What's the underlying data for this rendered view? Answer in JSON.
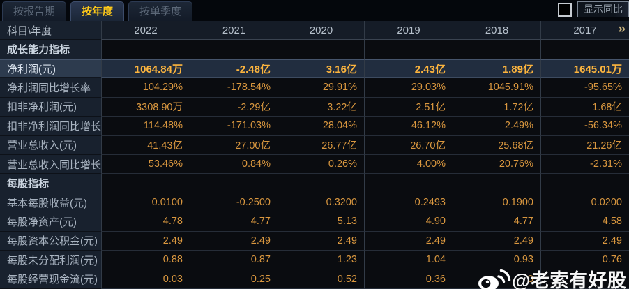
{
  "tabs": [
    {
      "label": "按报告期",
      "active": false
    },
    {
      "label": "按年度",
      "active": true
    },
    {
      "label": "按单季度",
      "active": false
    }
  ],
  "controls": {
    "show_yoy_label": "显示同比",
    "checkbox_checked": false
  },
  "table": {
    "corner_label": "科目\\年度",
    "years": [
      "2022",
      "2021",
      "2020",
      "2019",
      "2018",
      "2017"
    ],
    "more_icon": "»",
    "rows": [
      {
        "type": "section",
        "highlight": false,
        "label": "成长能力指标",
        "values": [
          "",
          "",
          "",
          "",
          "",
          ""
        ]
      },
      {
        "type": "data",
        "highlight": true,
        "label": "净利润(元)",
        "values": [
          "1064.84万",
          "-2.48亿",
          "3.16亿",
          "2.43亿",
          "1.89亿",
          "1645.01万"
        ]
      },
      {
        "type": "data",
        "highlight": false,
        "label": "净利润同比增长率",
        "values": [
          "104.29%",
          "-178.54%",
          "29.91%",
          "29.03%",
          "1045.91%",
          "-95.65%"
        ]
      },
      {
        "type": "data",
        "highlight": false,
        "label": "扣非净利润(元)",
        "values": [
          "3308.90万",
          "-2.29亿",
          "3.22亿",
          "2.51亿",
          "1.72亿",
          "1.68亿"
        ]
      },
      {
        "type": "data",
        "highlight": false,
        "label": "扣非净利润同比增长率",
        "values": [
          "114.48%",
          "-171.03%",
          "28.04%",
          "46.12%",
          "2.49%",
          "-56.34%"
        ]
      },
      {
        "type": "data",
        "highlight": false,
        "label": "营业总收入(元)",
        "values": [
          "41.43亿",
          "27.00亿",
          "26.77亿",
          "26.70亿",
          "25.68亿",
          "21.26亿"
        ]
      },
      {
        "type": "data",
        "highlight": false,
        "label": "营业总收入同比增长率",
        "values": [
          "53.46%",
          "0.84%",
          "0.26%",
          "4.00%",
          "20.76%",
          "-2.31%"
        ]
      },
      {
        "type": "section",
        "highlight": false,
        "label": "每股指标",
        "values": [
          "",
          "",
          "",
          "",
          "",
          ""
        ]
      },
      {
        "type": "data",
        "highlight": false,
        "label": "基本每股收益(元)",
        "values": [
          "0.0100",
          "-0.2500",
          "0.3200",
          "0.2493",
          "0.1900",
          "0.0200"
        ]
      },
      {
        "type": "data",
        "highlight": false,
        "label": "每股净资产(元)",
        "values": [
          "4.78",
          "4.77",
          "5.13",
          "4.90",
          "4.77",
          "4.58"
        ]
      },
      {
        "type": "data",
        "highlight": false,
        "label": "每股资本公积金(元)",
        "values": [
          "2.49",
          "2.49",
          "2.49",
          "2.49",
          "2.49",
          "2.49"
        ]
      },
      {
        "type": "data",
        "highlight": false,
        "label": "每股未分配利润(元)",
        "values": [
          "0.88",
          "0.87",
          "1.23",
          "1.04",
          "0.93",
          "0.76"
        ]
      },
      {
        "type": "data",
        "highlight": false,
        "label": "每股经营现金流(元)",
        "values": [
          "0.03",
          "0.25",
          "0.52",
          "0.36",
          "0",
          ""
        ]
      }
    ]
  },
  "watermark": {
    "text": "@老索有好股",
    "icon": "weibo-icon"
  },
  "colors": {
    "tab_active_text": "#fec919",
    "value_orange": "#d9973f",
    "highlight_value_gold": "#fdb53e",
    "header_text": "#b6c0cb",
    "label_text": "#a9b4c1",
    "more_chevron": "#c6b17c",
    "watermark_text": "#ffffff"
  }
}
